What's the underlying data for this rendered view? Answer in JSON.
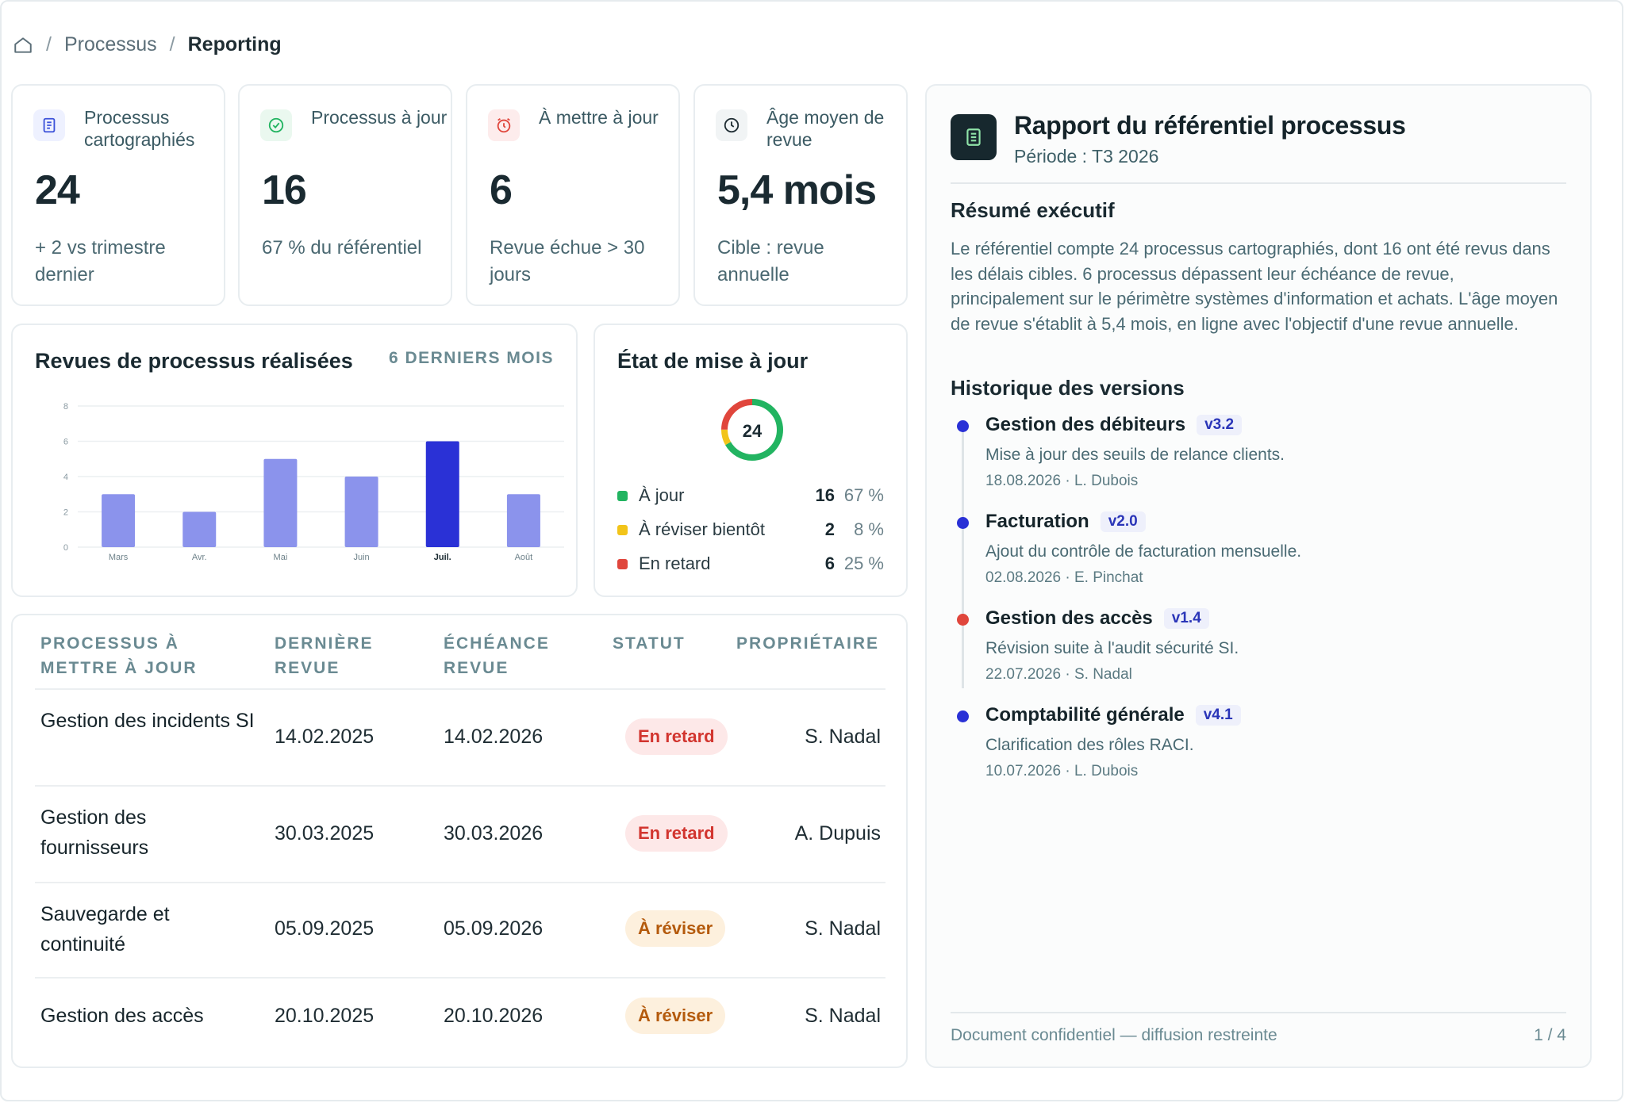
{
  "breadcrumb": {
    "items": [
      "Processus",
      "Reporting"
    ]
  },
  "kpis": [
    {
      "label": "Processus cartographiés",
      "value": "24",
      "sub": "+ 2 vs trimestre dernier",
      "icon": "document-list-icon",
      "color": "#3c52d9",
      "bg": "#eef1ff"
    },
    {
      "label": "Processus à jour",
      "value": "16",
      "sub": "67 % du référentiel",
      "icon": "check-circle-icon",
      "color": "#22b461",
      "bg": "#eaf8ef"
    },
    {
      "label": "À mettre à jour",
      "value": "6",
      "sub": "Revue échue > 30 jours",
      "icon": "alarm-clock-icon",
      "color": "#e0463c",
      "bg": "#fdecec"
    },
    {
      "label": "Âge moyen de revue",
      "value": "5,4 mois",
      "sub": "Cible : revue annuelle",
      "icon": "clock-icon",
      "color": "#1f2d33",
      "bg": "#f1f4f5"
    }
  ],
  "reviews_chart": {
    "title": "Revues de processus réalisées",
    "period_tag": "6 DERNIERS MOIS"
  },
  "chart_data": {
    "type": "bar",
    "categories": [
      "Mars",
      "Avr.",
      "Mai",
      "Juin",
      "Juil.",
      "Août"
    ],
    "values": [
      3,
      2,
      5,
      4,
      6,
      3
    ],
    "highlight_index": 4,
    "ylim": [
      0,
      8
    ],
    "yticks": [
      0,
      2,
      4,
      6,
      8
    ],
    "grid": true,
    "colors": {
      "bar": "#8b93ec",
      "highlight": "#2a31d6"
    }
  },
  "status": {
    "title": "État de mise à jour",
    "total": "24",
    "items": [
      {
        "name": "À jour",
        "count": "16",
        "pct": "67 %",
        "value": 16,
        "color": "#22b461"
      },
      {
        "name": "À réviser bientôt",
        "count": "2",
        "pct": "8 %",
        "value": 2,
        "color": "#f2c41a"
      },
      {
        "name": "En retard",
        "count": "6",
        "pct": "25 %",
        "value": 6,
        "color": "#e0463c"
      }
    ]
  },
  "table": {
    "headers": [
      "PROCESSUS À METTRE À JOUR",
      "DERNIÈRE REVUE",
      "ÉCHÉANCE REVUE",
      "STATUT",
      "PROPRIÉTAIRE"
    ],
    "rows": [
      {
        "name": "Gestion des incidents SI",
        "last": "14.02.2025",
        "due": "14.02.2026",
        "status": "En retard",
        "kind": "late",
        "owner": "S. Nadal"
      },
      {
        "name": "Gestion des fournisseurs",
        "last": "30.03.2025",
        "due": "30.03.2026",
        "status": "En retard",
        "kind": "late",
        "owner": "A. Dupuis"
      },
      {
        "name": "Sauvegarde et continuité",
        "last": "05.09.2025",
        "due": "05.09.2026",
        "status": "À réviser",
        "kind": "revise",
        "owner": "S. Nadal"
      },
      {
        "name": "Gestion des accès",
        "last": "20.10.2025",
        "due": "20.10.2026",
        "status": "À réviser",
        "kind": "revise",
        "owner": "S. Nadal"
      }
    ]
  },
  "report": {
    "title": "Rapport du référentiel processus",
    "period": "Période : T3 2026",
    "summary_title": "Résumé exécutif",
    "summary": "Le référentiel compte 24 processus cartographiés, dont 16 ont été revus dans les délais cibles. 6 processus dépassent leur échéance de revue, principalement sur le périmètre systèmes d'information et achats. L'âge moyen de revue s'établit à 5,4 mois, en ligne avec l'objectif d'une revue annuelle.",
    "history_title": "Historique des versions",
    "versions": [
      {
        "title": "Gestion des débiteurs",
        "version": "v3.2",
        "desc": "Mise à jour des seuils de relance clients.",
        "meta": "18.08.2026 · L. Dubois",
        "color": "#2a31d6"
      },
      {
        "title": "Facturation",
        "version": "v2.0",
        "desc": "Ajout du contrôle de facturation mensuelle.",
        "meta": "02.08.2026 · E. Pinchat",
        "color": "#2a31d6"
      },
      {
        "title": "Gestion des accès",
        "version": "v1.4",
        "desc": "Révision suite à l'audit sécurité SI.",
        "meta": "22.07.2026 · S. Nadal",
        "color": "#e0463c"
      },
      {
        "title": "Comptabilité générale",
        "version": "v4.1",
        "desc": "Clarification des rôles RACI.",
        "meta": "10.07.2026 · L. Dubois",
        "color": "#2a31d6"
      }
    ],
    "footer_left": "Document confidentiel — diffusion restreinte",
    "footer_right": "1 / 4"
  }
}
